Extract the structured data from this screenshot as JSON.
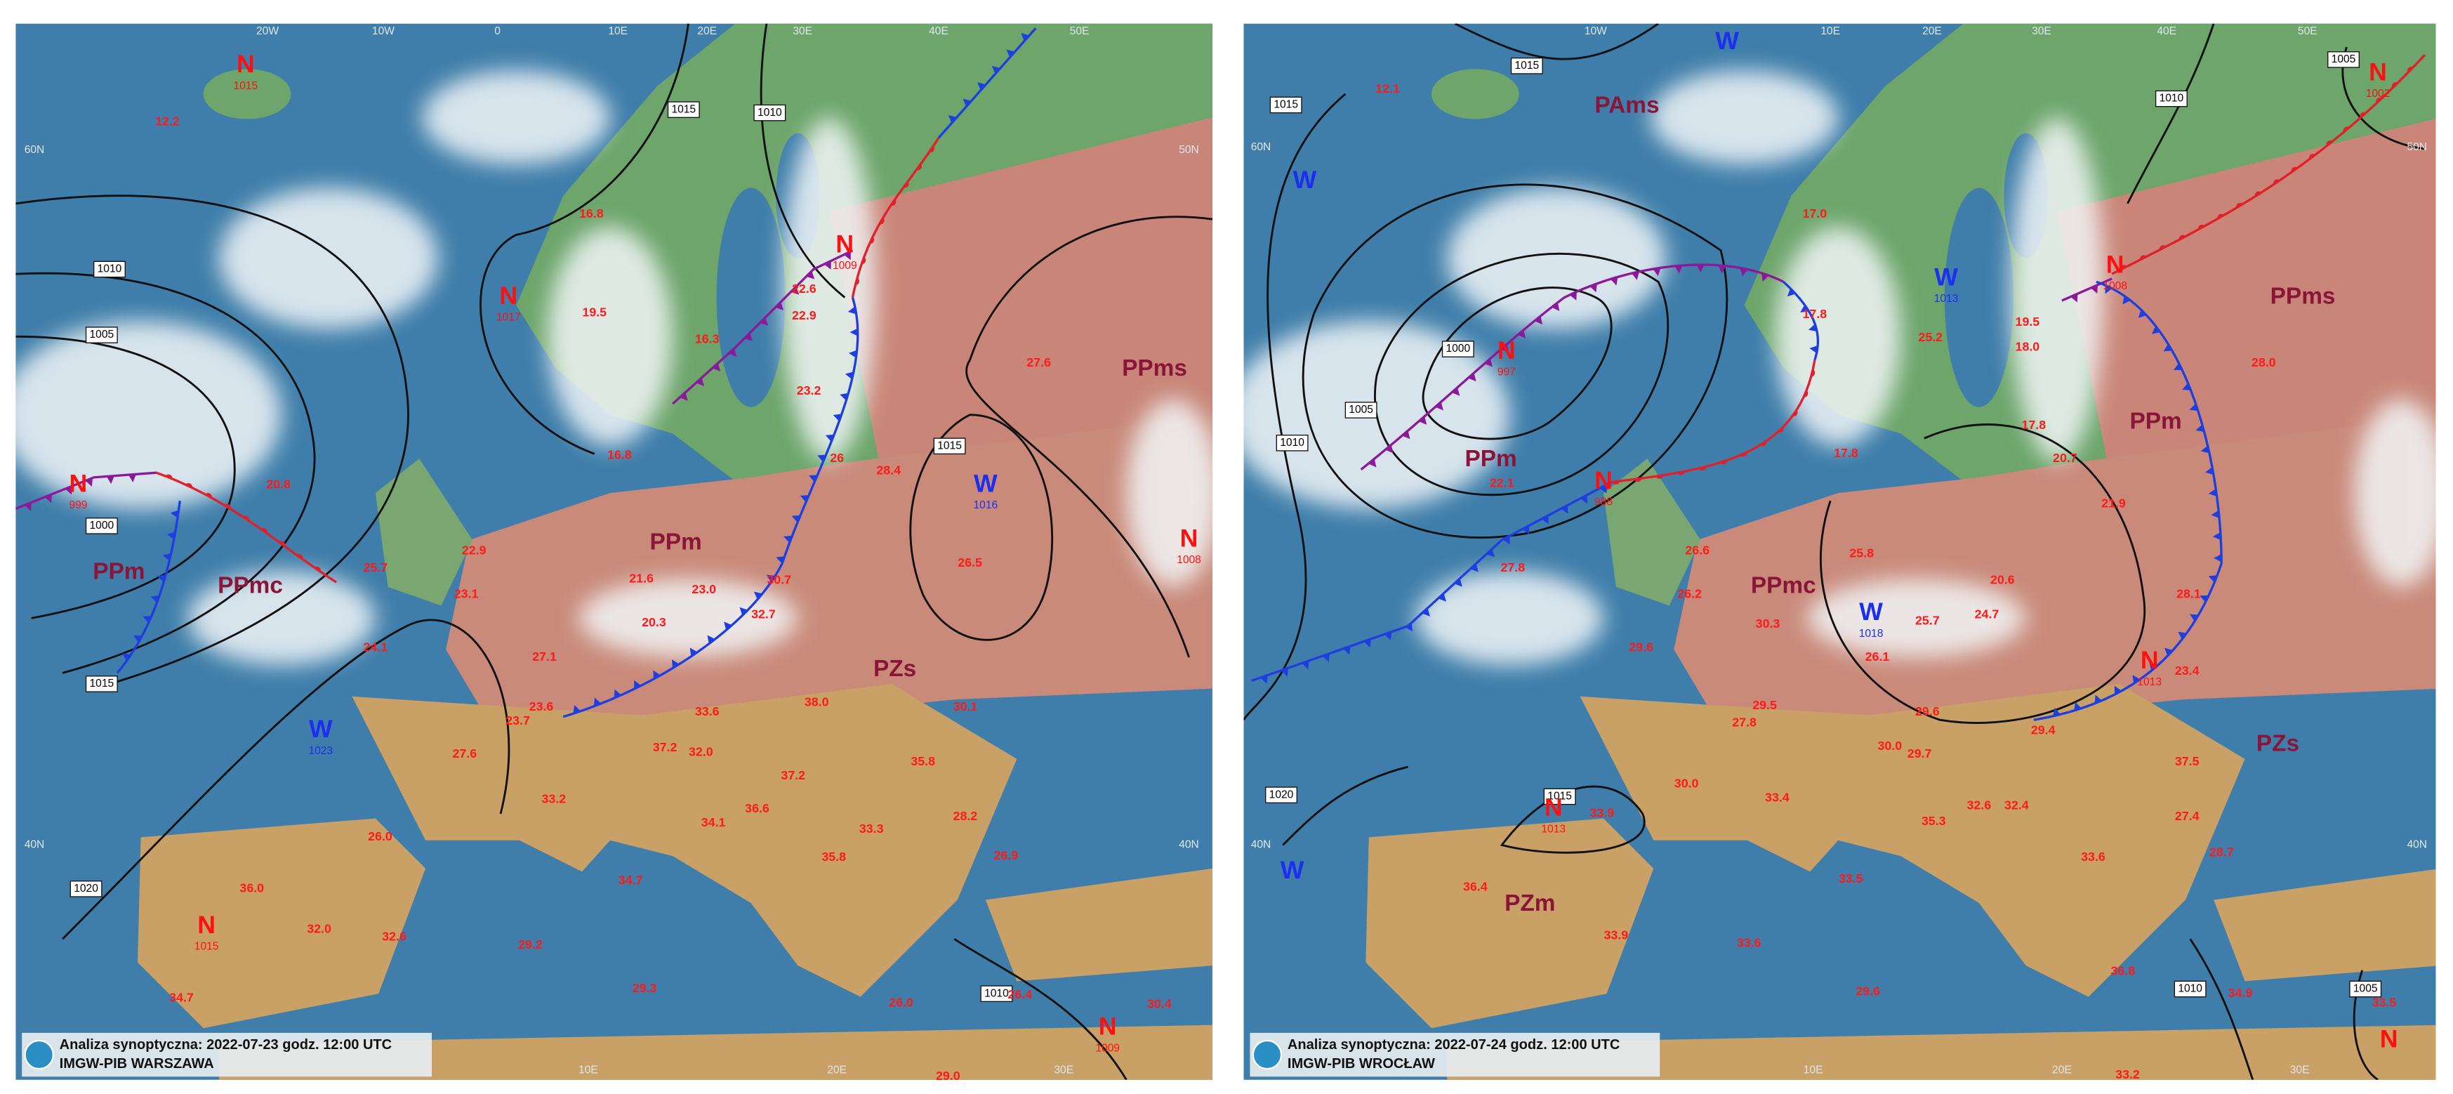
{
  "panels": [
    {
      "caption": {
        "line1": "Analiza synoptyczna: 2022-07-23 godz. 12:00 UTC",
        "line2": "IMGW-PIB WARSZAWA"
      },
      "pressure_centers": [
        {
          "letter": "N",
          "value": "1015"
        },
        {
          "letter": "N",
          "value": "1017"
        },
        {
          "letter": "N",
          "value": "1009"
        },
        {
          "letter": "N",
          "value": "999"
        },
        {
          "letter": "W",
          "value": "1016"
        },
        {
          "letter": "N",
          "value": "1008"
        },
        {
          "letter": "W",
          "value": "1023"
        },
        {
          "letter": "N",
          "value": "1015"
        },
        {
          "letter": "N",
          "value": "1009"
        }
      ],
      "air_masses": [
        "PPms",
        "PPm",
        "PPmc",
        "PPm",
        "PZs"
      ],
      "isobar_labels": [
        "1015",
        "1010",
        "1010",
        "1005",
        "1000",
        "1015",
        "1015",
        "1020",
        "1010"
      ],
      "temperatures": [
        "12.2",
        "16.8",
        "19.5",
        "16.3",
        "22.6",
        "22.9",
        "23.2",
        "27.6",
        "16.8",
        "20.8",
        "26",
        "28.4",
        "22.9",
        "25.7",
        "23.1",
        "21.6",
        "23.0",
        "30.7",
        "32.7",
        "20.3",
        "24.1",
        "26.5",
        "27.1",
        "23.6",
        "23.7",
        "33.6",
        "38.0",
        "30.1",
        "27.6",
        "37.2",
        "32.0",
        "37.2",
        "35.8",
        "33.2",
        "26.0",
        "34.1",
        "36.6",
        "33.3",
        "28.2",
        "35.8",
        "26.9",
        "36.0",
        "32.0",
        "32.6",
        "34.7",
        "29.2",
        "29.3",
        "34.7",
        "26.0",
        "26.4",
        "30.4",
        "29.0"
      ],
      "graticule_labels": [
        "20W",
        "10W",
        "0",
        "10E",
        "20E",
        "30E",
        "40E",
        "50E",
        "60N",
        "50N",
        "40N",
        "40N",
        "10E",
        "20E",
        "30E"
      ]
    },
    {
      "caption": {
        "line1": "Analiza synoptyczna: 2022-07-24 godz. 12:00 UTC",
        "line2": "IMGW-PIB WROCŁAW"
      },
      "pressure_centers": [
        {
          "letter": "W"
        },
        {
          "letter": "W"
        },
        {
          "letter": "N",
          "value": "1002"
        },
        {
          "letter": "W",
          "value": "1013"
        },
        {
          "letter": "N",
          "value": "1008"
        },
        {
          "letter": "N",
          "value": "997"
        },
        {
          "letter": "N",
          "value": "988"
        },
        {
          "letter": "W",
          "value": "1018"
        },
        {
          "letter": "N",
          "value": "1013"
        },
        {
          "letter": "N",
          "value": "1013"
        },
        {
          "letter": "W"
        },
        {
          "letter": "N"
        }
      ],
      "air_masses": [
        "PAms",
        "PPms",
        "PPm",
        "PPm",
        "PPmc",
        "PZs",
        "PZm"
      ],
      "isobar_labels": [
        "1015",
        "1010",
        "1005",
        "1015",
        "1000",
        "1005",
        "1010",
        "1015",
        "1020",
        "1010",
        "1005"
      ],
      "temperatures": [
        "12.1",
        "17.0",
        "17.8",
        "25.2",
        "19.5",
        "18.0",
        "17.8",
        "28.0",
        "20.7",
        "21.9",
        "17.8",
        "22.1",
        "27.8",
        "26.6",
        "26.2",
        "25.8",
        "20.6",
        "30.3",
        "25.7",
        "24.7",
        "29.6",
        "26.1",
        "28.1",
        "23.4",
        "29.5",
        "27.8",
        "29.6",
        "29.4",
        "30.0",
        "29.7",
        "37.5",
        "33.4",
        "30.0",
        "33.9",
        "32.6",
        "32.4",
        "35.3",
        "27.4",
        "28.7",
        "33.6",
        "36.4",
        "33.5",
        "33.9",
        "33.6",
        "29.6",
        "36.8",
        "34.9",
        "33.5",
        "33.2"
      ],
      "graticule_labels": [
        "10W",
        "10E",
        "20E",
        "30E",
        "40E",
        "50E",
        "60N",
        "50N",
        "40N",
        "40N",
        "10E",
        "20E",
        "30E"
      ]
    }
  ]
}
